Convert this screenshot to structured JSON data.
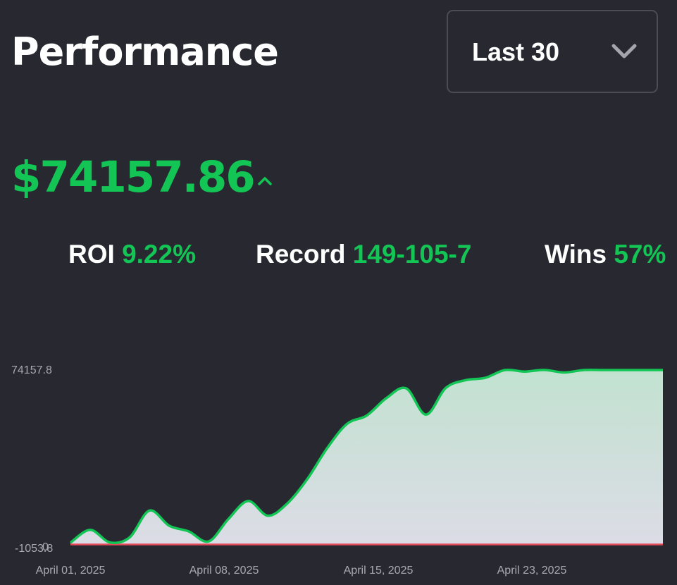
{
  "header": {
    "title": "Performance",
    "range_select": {
      "value": "Last 30",
      "icon": "chevron-down-icon"
    }
  },
  "summary": {
    "balance": "$74157.86",
    "trend_icon": "caret-up-icon",
    "stats": {
      "roi": {
        "label": "ROI",
        "value": "9.22%"
      },
      "record": {
        "label": "Record",
        "value": "149-105-7"
      },
      "wins": {
        "label": "Wins",
        "value": "57%"
      }
    }
  },
  "colors": {
    "background": "#282930",
    "accent": "#12c555",
    "negative": "#e24a5a",
    "text": "#ffffff",
    "axis_text": "#a9aab1"
  },
  "chart_data": {
    "type": "area",
    "title": "",
    "xlabel": "",
    "ylabel": "",
    "x_ticks": [
      "April 01, 2025",
      "April 08, 2025",
      "April 15, 2025",
      "April 23, 2025"
    ],
    "y_ticks": [
      "74157.8",
      "-1053.8",
      "0"
    ],
    "ylim": [
      -1053.8,
      74157.8
    ],
    "grid": false,
    "legend": "none",
    "series": [
      {
        "x": [
          0,
          1,
          2,
          3,
          4,
          5,
          6,
          7,
          8,
          9,
          10,
          11,
          12,
          13,
          14,
          15,
          16,
          17,
          18,
          19,
          20,
          21,
          22,
          23,
          24,
          25,
          26,
          27,
          28,
          29,
          30
        ],
        "values": [
          0,
          5500,
          100,
          2300,
          13800,
          7300,
          4800,
          550,
          10200,
          17900,
          11600,
          17000,
          27400,
          40600,
          51000,
          54600,
          62100,
          66300,
          55000,
          66400,
          69800,
          70800,
          74157.86,
          73500,
          74200,
          73100,
          74157.86,
          74157.86,
          74157.86,
          74157.86,
          74157.86
        ],
        "fill_top": "#c2e2d0",
        "fill_bottom": "#dcdce6"
      }
    ]
  }
}
